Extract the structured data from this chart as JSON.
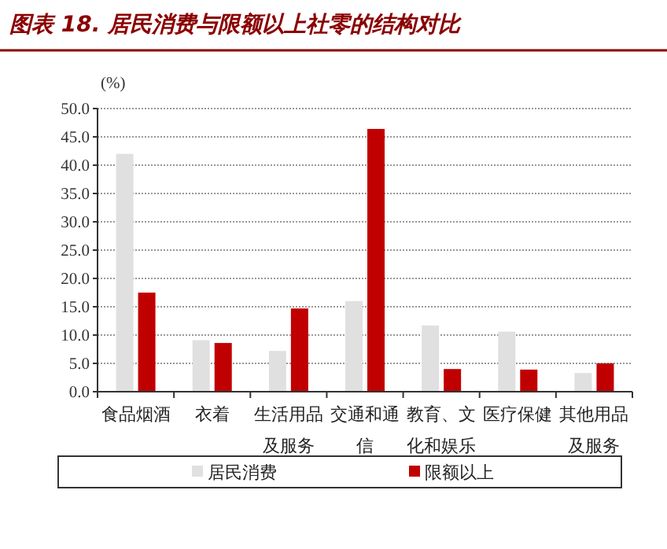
{
  "chart_data": {
    "type": "bar",
    "title": "图表 18. 居民消费与限额以上社零的结构对比",
    "ylabel": "(%)",
    "categories": [
      "食品烟酒",
      "衣着",
      "生活用品及服务",
      "交通和通信",
      "教育、文化和娱乐",
      "医疗保健",
      "其他用品及服务"
    ],
    "series": [
      {
        "name": "居民消费",
        "color": "#e0e0e0",
        "values": [
          42.0,
          9.1,
          7.2,
          16.0,
          11.7,
          10.6,
          3.3
        ]
      },
      {
        "name": "限额以上",
        "color": "#c00000",
        "values": [
          17.5,
          8.6,
          14.7,
          46.4,
          4.0,
          3.9,
          5.0
        ]
      }
    ],
    "ylim": [
      0,
      50
    ],
    "yticks": [
      {
        "value": 0,
        "label": "0.0"
      },
      {
        "value": 5,
        "label": "5.0"
      },
      {
        "value": 10,
        "label": "10.0"
      },
      {
        "value": 15,
        "label": "15.0"
      },
      {
        "value": 20,
        "label": "20.0"
      },
      {
        "value": 25,
        "label": "25.0"
      },
      {
        "value": 30,
        "label": "30.0"
      },
      {
        "value": 35,
        "label": "35.0"
      },
      {
        "value": 40,
        "label": "40.0"
      },
      {
        "value": 45,
        "label": "45.0"
      },
      {
        "value": 50,
        "label": "50.0"
      }
    ],
    "grid": "y",
    "legend": "bottom"
  }
}
